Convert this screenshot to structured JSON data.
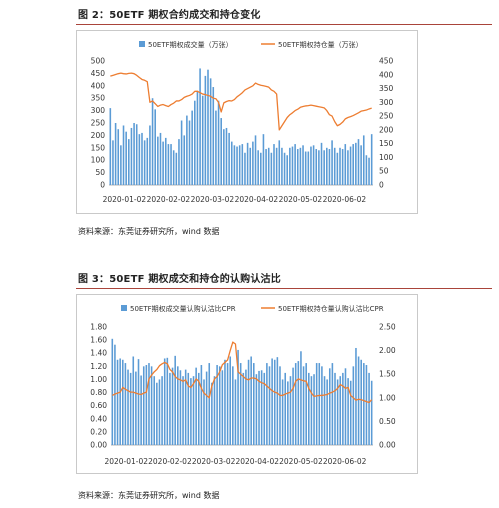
{
  "figures": [
    {
      "title": "图 2：50ETF 期权合约成交和持仓变化",
      "source": "资料来源：东莞证券研究所，wind 数据"
    },
    {
      "title": "图 3：50ETF 期权成交和持仓的认购认沽比",
      "source": "资料来源：东莞证券研究所，wind 数据"
    }
  ],
  "colors": {
    "bar": "#5b9bd5",
    "line": "#ed7d31",
    "rule": "#a9443a"
  },
  "chart_data": [
    {
      "type": "bar",
      "legend": [
        "50ETF期权成交量（万张）",
        "50ETF期权持仓量（万张）"
      ],
      "legend_position": "top",
      "grid": false,
      "x_tick_labels": [
        "2020-01-02",
        "2020-02-02",
        "2020-03-02",
        "2020-04-02",
        "2020-05-02",
        "2020-06-02"
      ],
      "y_left": {
        "ticks": [
          0,
          50,
          100,
          150,
          200,
          250,
          300,
          350,
          400,
          450,
          500
        ],
        "range": [
          0,
          500
        ]
      },
      "y_right": {
        "ticks": [
          0,
          50,
          100,
          150,
          200,
          250,
          300,
          350,
          400,
          450
        ],
        "range": [
          0,
          450
        ]
      },
      "series": [
        {
          "name": "50ETF期权成交量（万张）",
          "kind": "bar",
          "axis": "left",
          "values": [
            310,
            180,
            250,
            225,
            160,
            240,
            215,
            185,
            230,
            250,
            245,
            205,
            210,
            180,
            190,
            240,
            350,
            305,
            195,
            210,
            175,
            190,
            165,
            165,
            140,
            130,
            185,
            260,
            200,
            280,
            260,
            300,
            340,
            380,
            470,
            360,
            440,
            465,
            430,
            395,
            300,
            340,
            270,
            225,
            230,
            210,
            175,
            160,
            155,
            160,
            165,
            130,
            170,
            150,
            175,
            200,
            140,
            130,
            205,
            145,
            150,
            130,
            165,
            150,
            180,
            150,
            130,
            120,
            150,
            155,
            165,
            145,
            150,
            160,
            135,
            135,
            155,
            160,
            145,
            140,
            170,
            140,
            150,
            145,
            180,
            150,
            130,
            150,
            145,
            165,
            140,
            155,
            165,
            170,
            185,
            160,
            200,
            120,
            110,
            205
          ]
        },
        {
          "name": "50ETF期权持仓量（万张）",
          "kind": "line",
          "axis": "right",
          "values": [
            395,
            398,
            401,
            404,
            406,
            404,
            403,
            405,
            406,
            404,
            398,
            390,
            383,
            380,
            375,
            300,
            305,
            295,
            285,
            290,
            292,
            288,
            285,
            292,
            297,
            305,
            305,
            310,
            318,
            322,
            325,
            330,
            340,
            340,
            335,
            330,
            328,
            325,
            322,
            315,
            313,
            300,
            265,
            298,
            303,
            306,
            305,
            310,
            320,
            327,
            335,
            345,
            350,
            355,
            360,
            370,
            365,
            362,
            360,
            358,
            355,
            345,
            340,
            330,
            200,
            215,
            230,
            245,
            255,
            262,
            270,
            275,
            282,
            285,
            287,
            288,
            290,
            288,
            286,
            284,
            282,
            280,
            270,
            255,
            250,
            230,
            215,
            220,
            228,
            240,
            245,
            248,
            252,
            257,
            262,
            268,
            270,
            272,
            276,
            279
          ]
        }
      ]
    },
    {
      "type": "bar",
      "legend": [
        "50ETF期权成交量认购认沽比CPR",
        "50ETF期权持仓量认购认沽比CPR"
      ],
      "legend_position": "top",
      "grid": false,
      "x_tick_labels": [
        "2020-01-02",
        "2020-02-02",
        "2020-03-02",
        "2020-04-02",
        "2020-05-02",
        "2020-06-02"
      ],
      "y_left": {
        "ticks": [
          "0.00",
          "0.20",
          "0.40",
          "0.60",
          "0.80",
          "1.00",
          "1.20",
          "1.40",
          "1.60",
          "1.80"
        ],
        "range": [
          0,
          1.8
        ]
      },
      "y_right": {
        "ticks": [
          "0.00",
          "0.50",
          "1.00",
          "1.50",
          "2.00",
          "2.50"
        ],
        "range": [
          0,
          2.5
        ]
      },
      "series": [
        {
          "name": "50ETF期权成交量认购认沽比CPR",
          "kind": "bar",
          "axis": "left",
          "values": [
            1.62,
            1.53,
            1.3,
            1.32,
            1.3,
            1.25,
            1.15,
            1.1,
            1.35,
            1.12,
            1.31,
            1.06,
            1.2,
            1.22,
            1.25,
            1.2,
            1.05,
            0.95,
            1.0,
            1.05,
            1.32,
            1.33,
            1.1,
            1.18,
            1.36,
            1.2,
            1.14,
            1.05,
            1.15,
            1.1,
            1.02,
            1.05,
            1.18,
            1.1,
            1.22,
            1.0,
            1.12,
            1.25,
            0.95,
            1.05,
            1.22,
            1.2,
            1.14,
            1.3,
            1.25,
            1.35,
            1.2,
            1.0,
            1.45,
            1.25,
            1.1,
            1.15,
            1.3,
            1.35,
            1.25,
            1.08,
            1.13,
            1.14,
            1.1,
            1.25,
            1.2,
            1.32,
            1.3,
            1.34,
            1.2,
            1.0,
            1.1,
            0.97,
            1.05,
            1.18,
            1.25,
            1.28,
            1.43,
            1.2,
            1.25,
            1.1,
            1.05,
            1.08,
            1.25,
            1.25,
            1.2,
            1.05,
            1.0,
            1.17,
            1.25,
            1.1,
            1.0,
            1.05,
            1.1,
            1.17,
            1.02,
            0.98,
            1.2,
            1.48,
            1.35,
            1.3,
            1.25,
            1.22,
            1.1,
            0.98
          ]
        },
        {
          "name": "50ETF期权持仓量认购认沽比CPR",
          "kind": "line",
          "axis": "right",
          "values": [
            1.05,
            1.08,
            1.1,
            1.12,
            1.22,
            1.18,
            1.15,
            1.12,
            1.12,
            1.1,
            1.08,
            1.07,
            1.1,
            1.12,
            1.4,
            1.48,
            1.55,
            1.6,
            1.68,
            1.72,
            1.75,
            1.72,
            1.6,
            1.55,
            1.45,
            1.4,
            1.38,
            1.35,
            1.38,
            1.25,
            1.22,
            1.3,
            1.4,
            1.35,
            1.2,
            1.1,
            1.05,
            1.0,
            1.25,
            1.4,
            1.45,
            1.55,
            1.7,
            1.75,
            1.8,
            2.0,
            2.18,
            2.14,
            1.55,
            1.5,
            1.45,
            1.4,
            1.38,
            1.42,
            1.42,
            1.4,
            1.35,
            1.32,
            1.3,
            1.25,
            1.2,
            1.15,
            1.12,
            1.1,
            1.05,
            1.05,
            1.08,
            1.1,
            1.12,
            1.2,
            1.35,
            1.4,
            1.38,
            1.36,
            1.35,
            1.2,
            1.1,
            1.03,
            1.04,
            1.05,
            1.05,
            1.06,
            1.07,
            1.1,
            1.12,
            1.15,
            1.2,
            1.28,
            1.25,
            1.2,
            1.22,
            1.05,
            1.0,
            0.95,
            0.97,
            0.96,
            0.94,
            0.92,
            0.9,
            0.96
          ]
        }
      ]
    }
  ]
}
